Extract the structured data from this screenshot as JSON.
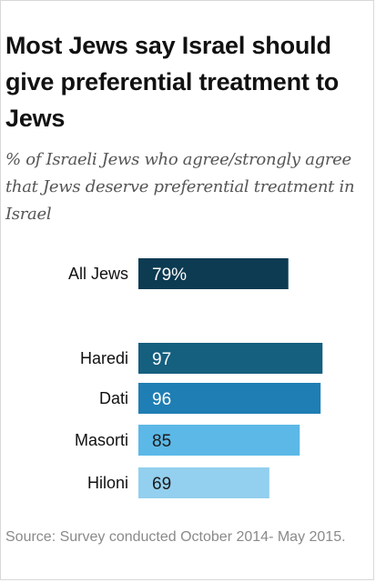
{
  "title": "Most Jews say Israel should give preferential treatment to Jews",
  "subtitle": "% of Israeli Jews who agree/strongly agree that Jews deserve preferential treatment in Israel",
  "source": "Source: Survey conducted October 2014- May 2015.",
  "chart_data": {
    "type": "bar",
    "orientation": "horizontal",
    "title": "Most Jews say Israel should give preferential treatment to Jews",
    "subtitle": "% of Israeli Jews who agree/strongly agree that Jews deserve preferential treatment in Israel",
    "categories": [
      "All Jews",
      "Haredi",
      "Dati",
      "Masorti",
      "Hiloni"
    ],
    "values": [
      79,
      97,
      96,
      85,
      69
    ],
    "value_labels": [
      "79%",
      "97",
      "96",
      "85",
      "69"
    ],
    "xlim": [
      0,
      100
    ],
    "grid": false,
    "legend": "none",
    "colors": [
      "#0d3b52",
      "#155f7f",
      "#1f7eb3",
      "#5cb8e6",
      "#93cfee"
    ]
  }
}
